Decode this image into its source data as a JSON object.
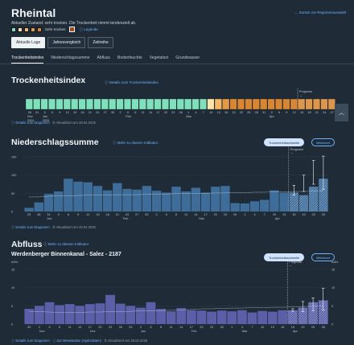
{
  "page": {
    "title": "Rheintal",
    "back_link": "← Zurück zur Regionenauswahl",
    "subtitle": "Aktueller Zustand: sehr trocken. Die Trockenheit nimmt tendenziell ab.",
    "status_label": "Sehr trocken",
    "legend_link": "ⓘ Legende",
    "colors": {
      "background": "#1f2b36",
      "accent": "#6fb3ff",
      "bar_fill": "#3e6d9a",
      "flow_fill": "#5a5fa8"
    }
  },
  "buttons": [
    "Aktuelle Lage",
    "Jahresvergleich",
    "Zeitreihe"
  ],
  "tabs": [
    "Trockenheitsindex",
    "Niederschlagssumme",
    "Abfluss",
    "Bodenfeuchte",
    "Vegetation",
    "Grundwasser"
  ],
  "dryness": {
    "title": "Trockenheitsindex",
    "link": "ⓘ Details zum Trockenheitsindex",
    "forecast_label": "Prognose",
    "forecast_arrow": "→",
    "details": "ⓘ Details zum Diagramm",
    "updated": "Aktualisiert am 28.04.2025",
    "scroll_icon": "chevron-up-icon",
    "cells": [
      {
        "day": "28",
        "color": "#7fe0bc"
      },
      {
        "day": "31",
        "color": "#7fe0bc"
      },
      {
        "day": "3",
        "color": "#7fe0bc"
      },
      {
        "day": "6",
        "color": "#7fe0bc"
      },
      {
        "day": "9",
        "color": "#7fe0bc"
      },
      {
        "day": "12",
        "color": "#7fe0bc"
      },
      {
        "day": "15",
        "color": "#7fe0bc"
      },
      {
        "day": "18",
        "color": "#7fe0bc"
      },
      {
        "day": "21",
        "color": "#7fe0bc"
      },
      {
        "day": "24",
        "color": "#7fe0bc"
      },
      {
        "day": "27",
        "color": "#7fe0bc"
      },
      {
        "day": "30",
        "color": "#7fe0bc"
      },
      {
        "day": "2",
        "color": "#7fe0bc"
      },
      {
        "day": "5",
        "color": "#7fe0bc"
      },
      {
        "day": "8",
        "color": "#7fe0bc"
      },
      {
        "day": "11",
        "color": "#7fe0bc"
      },
      {
        "day": "14",
        "color": "#7fe0bc"
      },
      {
        "day": "17",
        "color": "#7fe0bc"
      },
      {
        "day": "20",
        "color": "#7fe0bc"
      },
      {
        "day": "23",
        "color": "#7fe0bc"
      },
      {
        "day": "26",
        "color": "#7fe0bc"
      },
      {
        "day": "1",
        "color": "#7fe0bc"
      },
      {
        "day": "4",
        "color": "#7fe0bc"
      },
      {
        "day": "7",
        "color": "#7fe0bc"
      },
      {
        "day": "10",
        "color": "#f7e4a8"
      },
      {
        "day": "13",
        "color": "#f3b867"
      },
      {
        "day": "16",
        "color": "#e39a45"
      },
      {
        "day": "19",
        "color": "#d88634"
      },
      {
        "day": "22",
        "color": "#d88634"
      },
      {
        "day": "25",
        "color": "#d88634"
      },
      {
        "day": "28",
        "color": "#d88634"
      },
      {
        "day": "31",
        "color": "#d88634"
      },
      {
        "day": "3",
        "color": "#d88634"
      },
      {
        "day": "6",
        "color": "#d88634"
      },
      {
        "day": "9",
        "color": "#d88634"
      },
      {
        "day": "12",
        "color": "#d88634"
      },
      {
        "day": "15",
        "color": "#d88634"
      },
      {
        "day": "18",
        "color": "#d88634"
      },
      {
        "day": "21",
        "color": "#d88634"
      },
      {
        "day": "24",
        "color": "#d88634"
      },
      {
        "day": "27",
        "color": "#d88634"
      }
    ],
    "months": [
      {
        "label": "Dez",
        "year": "2024",
        "at": 0
      },
      {
        "label": "Jan",
        "year": "2025",
        "at": 2
      },
      {
        "label": "Feb",
        "at": 13
      },
      {
        "label": "Mar",
        "at": 21
      },
      {
        "label": "Apr",
        "at": 32
      }
    ]
  },
  "precip": {
    "title": "Niederschlagssumme",
    "link": "ⓘ Mehr zu diesem Indikator",
    "toggle_on": "Trockenheitsschwelle",
    "toggle_off": "Mittelwert",
    "forecast_label": "Prognose",
    "forecast_arrow": "→",
    "details": "ⓘ Details zum Diagramm",
    "updated": "Aktualisiert am 28.04.2025",
    "chart_data": {
      "type": "bar",
      "yticks": [
        0,
        50,
        100,
        150
      ],
      "ylim": [
        0,
        150
      ],
      "xlabels": [
        "25",
        "28",
        "31",
        "3",
        "6",
        "9",
        "12",
        "15",
        "18",
        "21",
        "24",
        "27",
        "30",
        "2",
        "5",
        "8",
        "11",
        "14",
        "17",
        "20",
        "23",
        "26",
        "1",
        "4",
        "7",
        "10",
        "13",
        "16",
        "19",
        "22",
        "25"
      ],
      "month_labels": [
        "Jan",
        "Feb",
        "Mar",
        "Apr"
      ],
      "values": [
        10,
        25,
        48,
        55,
        90,
        82,
        80,
        70,
        58,
        78,
        62,
        60,
        70,
        57,
        52,
        68,
        55,
        65,
        52,
        68,
        70,
        23,
        22,
        28,
        32,
        58,
        52,
        52,
        45,
        68,
        90
      ],
      "forecast_start_index": 27,
      "forecast_high": [
        72,
        100,
        140,
        152
      ],
      "forecast_low": [
        45,
        55,
        75,
        60
      ],
      "mean_line": [
        40,
        40,
        42,
        43,
        43,
        44,
        45,
        45,
        45,
        46,
        46,
        46,
        47,
        48,
        48,
        49,
        49,
        50,
        50,
        51,
        51,
        52,
        52,
        53,
        53,
        54,
        54,
        55,
        55,
        56,
        56
      ]
    }
  },
  "flow": {
    "title": "Abfluss",
    "link": "ⓘ Mehr zu diesem Indikator",
    "station": "Werdenberger Binnenkanal - Salez - 2187",
    "toggle_on": "Trockenheitsschwelle",
    "toggle_off": "Mittelwert",
    "forecast_label": "Prognose",
    "forecast_arrow": "→",
    "y_unit_left": "m3/s",
    "y_unit_right": "m3/s",
    "details": "ⓘ Details zum Diagramm",
    "station_link": "ⓘ Zur Messstation (Hydrodaten)",
    "updated": "Aktualisiert am 28.04.2025",
    "chart_data": {
      "type": "bar",
      "yticks": [
        0,
        5,
        10,
        15
      ],
      "ylim": [
        0,
        15
      ],
      "xlabels": [
        "30",
        "2",
        "5",
        "8",
        "11",
        "14",
        "17",
        "20",
        "23",
        "26",
        "29",
        "2",
        "5",
        "8",
        "11",
        "14",
        "17",
        "20",
        "23",
        "26",
        "1",
        "4",
        "7",
        "10",
        "13",
        "16",
        "19",
        "22",
        "25",
        "28"
      ],
      "month_labels": [
        "Nov",
        "Dez",
        "Jan",
        "Feb",
        "Mar",
        "Apr"
      ],
      "values": [
        4.2,
        5.0,
        6.0,
        5.2,
        5.5,
        5.0,
        5.5,
        5.7,
        8.0,
        5.6,
        5.0,
        4.5,
        6.0,
        4.2,
        3.5,
        4.4,
        3.8,
        3.7,
        3.4,
        3.7,
        3.5,
        3.8,
        3.2,
        3.6,
        3.4,
        3.8,
        3.8,
        4.5,
        6.0,
        6.5
      ],
      "forecast_start_index": 26,
      "forecast_high": [
        4.2,
        6.2,
        7.2,
        9.8
      ],
      "forecast_low": [
        3.5,
        3.4,
        3.6,
        3.8
      ],
      "mean_line": [
        3.5,
        3.4,
        3.3,
        3.2,
        3.2,
        3.2,
        3.3,
        3.3,
        3.4,
        3.4,
        3.5,
        3.6,
        3.6,
        3.7,
        3.8,
        3.9,
        4.0,
        4.2,
        4.2,
        4.3,
        4.4,
        4.4,
        4.5,
        4.5,
        4.6,
        4.6,
        4.7,
        4.8,
        4.9,
        4.9
      ]
    }
  }
}
